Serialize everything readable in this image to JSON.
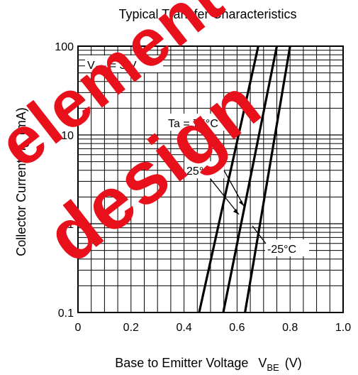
{
  "chart_data": {
    "type": "line",
    "title": "Typical Transfer Characteristics",
    "xlabel": "Base to Emitter Voltage",
    "xlabel_symbol": "V",
    "xlabel_symbol_sub": "BE",
    "xlabel_unit": "(V)",
    "ylabel": "Collector Current",
    "ylabel_symbol": "I",
    "ylabel_symbol_sub": "C",
    "ylabel_unit": "(mA)",
    "xlim": [
      0,
      1.0
    ],
    "ylim": [
      0.1,
      100
    ],
    "yscale": "log",
    "grid": true,
    "x_ticks": [
      "0",
      "0.2",
      "0.4",
      "0.6",
      "0.8",
      "1.0"
    ],
    "y_ticks": [
      "0.1",
      "1",
      "10",
      "100"
    ],
    "condition": {
      "symbol": "V",
      "sub": "CE",
      "rest": " = 3 V"
    },
    "series": [
      {
        "name": "Ta = 75°C",
        "x": [
          0.457,
          0.68
        ],
        "y": [
          0.1,
          100
        ]
      },
      {
        "name": "25°C",
        "x": [
          0.548,
          0.75
        ],
        "y": [
          0.1,
          100
        ]
      },
      {
        "name": "-25°C",
        "x": [
          0.63,
          0.8
        ],
        "y": [
          0.1,
          100
        ]
      }
    ]
  },
  "watermark": {
    "line1": "element",
    "line2": "design"
  }
}
